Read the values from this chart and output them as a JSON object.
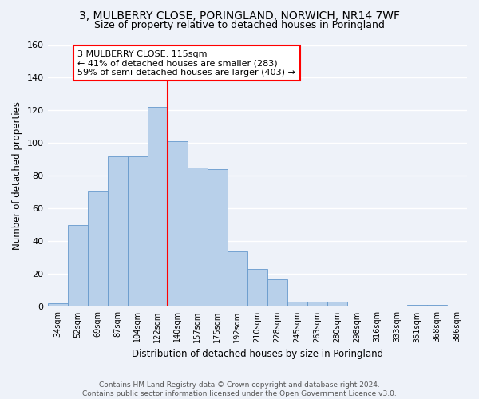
{
  "title1": "3, MULBERRY CLOSE, PORINGLAND, NORWICH, NR14 7WF",
  "title2": "Size of property relative to detached houses in Poringland",
  "xlabel": "Distribution of detached houses by size in Poringland",
  "ylabel": "Number of detached properties",
  "bar_labels": [
    "34sqm",
    "52sqm",
    "69sqm",
    "87sqm",
    "104sqm",
    "122sqm",
    "140sqm",
    "157sqm",
    "175sqm",
    "192sqm",
    "210sqm",
    "228sqm",
    "245sqm",
    "263sqm",
    "280sqm",
    "298sqm",
    "316sqm",
    "333sqm",
    "351sqm",
    "368sqm",
    "386sqm"
  ],
  "bar_values": [
    2,
    50,
    71,
    92,
    92,
    122,
    101,
    85,
    84,
    34,
    23,
    17,
    3,
    3,
    3,
    0,
    0,
    0,
    1,
    1,
    0
  ],
  "bar_color": "#b8d0ea",
  "bar_edgecolor": "#6699cc",
  "vline_x": 5.5,
  "vline_color": "red",
  "ylim": [
    0,
    160
  ],
  "yticks": [
    0,
    20,
    40,
    60,
    80,
    100,
    120,
    140,
    160
  ],
  "annotation_line1": "3 MULBERRY CLOSE: 115sqm",
  "annotation_line2": "← 41% of detached houses are smaller (283)",
  "annotation_line3": "59% of semi-detached houses are larger (403) →",
  "annotation_box_color": "white",
  "annotation_box_edgecolor": "red",
  "footer1": "Contains HM Land Registry data © Crown copyright and database right 2024.",
  "footer2": "Contains public sector information licensed under the Open Government Licence v3.0.",
  "bg_color": "#eef2f9",
  "grid_color": "white",
  "title1_fontsize": 10,
  "title2_fontsize": 9,
  "ann_fontsize": 8,
  "xlabel_fontsize": 8.5,
  "ylabel_fontsize": 8.5,
  "footer_fontsize": 6.5
}
